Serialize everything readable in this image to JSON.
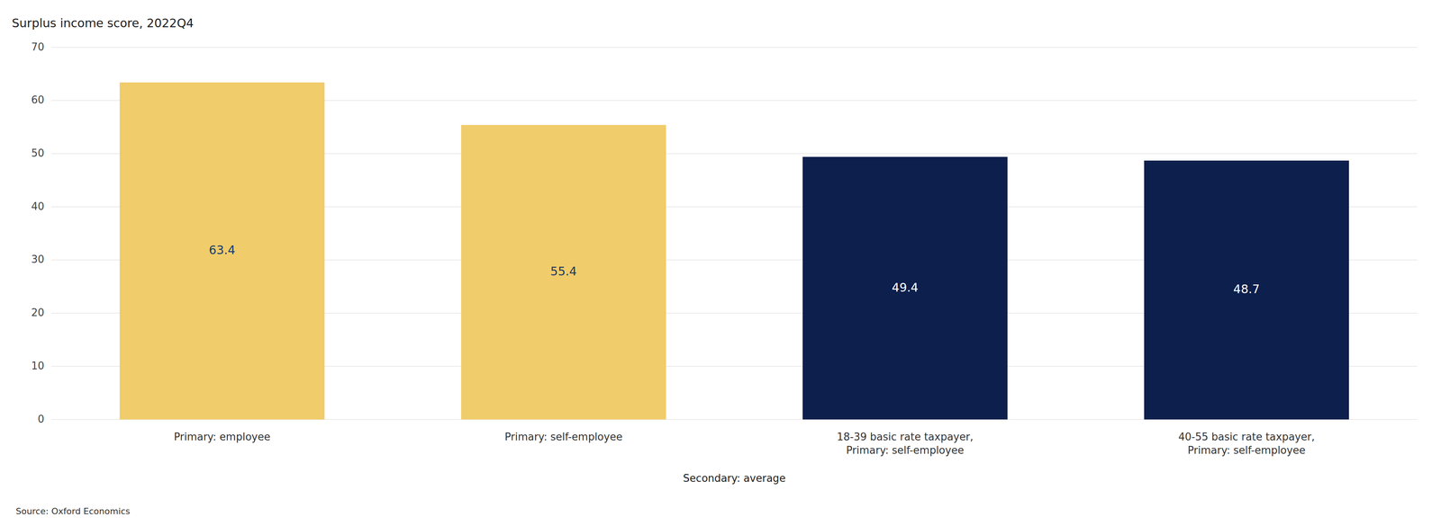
{
  "chart_data": {
    "type": "bar",
    "title": "Surplus income score, 2022Q4",
    "categories": [
      "Primary: employee",
      "Primary: self-employee",
      "18-39 basic rate taxpayer,\nPrimary: self-employee",
      "40-55 basic rate taxpayer,\nPrimary: self-employee"
    ],
    "values": [
      63.4,
      55.4,
      49.4,
      48.7
    ],
    "colors": [
      "#F0CC6A",
      "#F0CC6A",
      "#0D1F4C",
      "#0D1F4C"
    ],
    "xlabel": "Secondary: average",
    "annotations": [
      "Source: Oxford Economics"
    ],
    "ylim": [
      0,
      70
    ],
    "yticks": [
      0,
      10,
      20,
      30,
      40,
      50,
      60,
      70
    ],
    "grid": true,
    "data_labels": true
  }
}
